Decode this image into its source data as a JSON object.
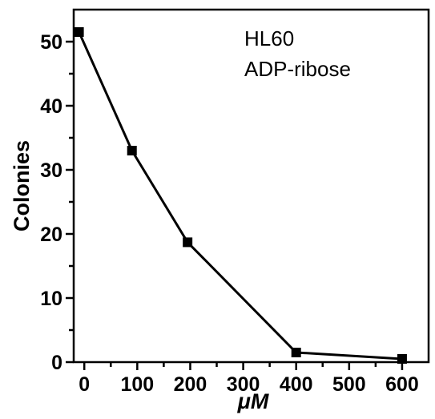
{
  "chart_data": {
    "type": "line",
    "title": "",
    "annotations": [
      "HL60",
      "ADP-ribose"
    ],
    "xlabel": "μM",
    "ylabel": "Colonies",
    "xlim": [
      -20,
      650
    ],
    "ylim": [
      0,
      55
    ],
    "x_ticks": [
      0,
      100,
      200,
      300,
      400,
      500,
      600
    ],
    "y_ticks": [
      0,
      10,
      20,
      30,
      40,
      50
    ],
    "grid": false,
    "series": [
      {
        "x": [
          -10,
          90,
          195,
          400,
          600
        ],
        "y": [
          51.5,
          33,
          18.7,
          1.5,
          0.5
        ]
      }
    ]
  }
}
